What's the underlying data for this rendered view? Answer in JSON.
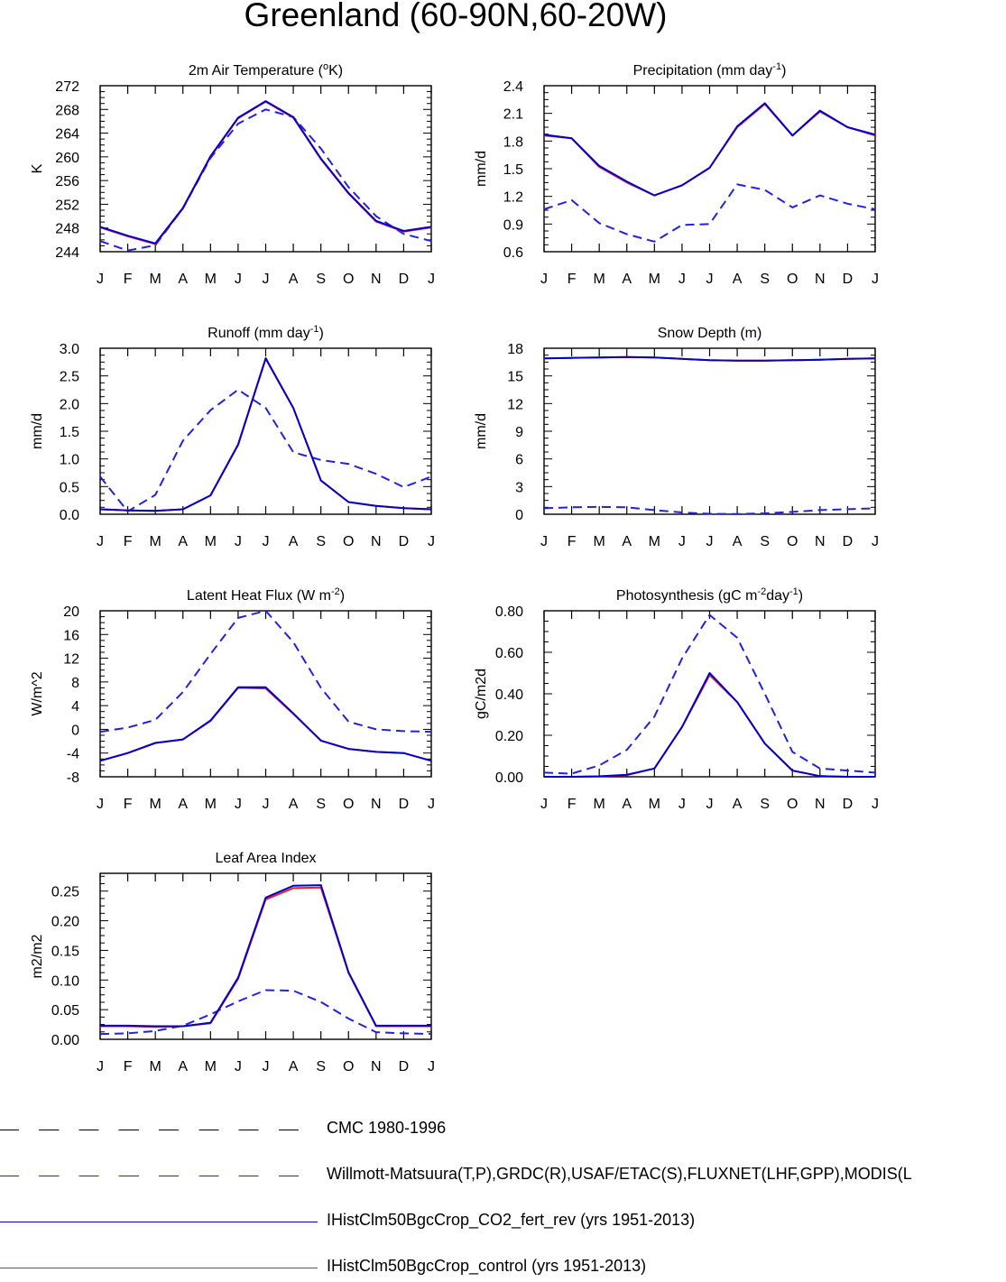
{
  "main_title": "Greenland (60-90N,60-20W)",
  "colors": {
    "observed_1": "#000000",
    "observed_2": "#2222dd",
    "model_1": "#0000cc",
    "model_2": "#ee2020"
  },
  "legend": [
    {
      "label": "CMC 1980-1996",
      "color": "#000000",
      "style": "dashed"
    },
    {
      "label": "Willmott-Matsuura(T,P),GRDC(R),USAF/ETAC(S),FLUXNET(LHF,GPP),MODIS(L",
      "color": "#2222dd",
      "style": "dashed"
    },
    {
      "label": "IHistClm50BgcCrop_CO2_fert_rev (yrs 1951-2013)",
      "color": "#0000cc",
      "style": "solid"
    },
    {
      "label": "IHistClm50BgcCrop_control (yrs 1951-2013)",
      "color": "#ee2020",
      "style": "solid"
    }
  ],
  "chart_data": [
    {
      "type": "line",
      "title": "2m Air Temperature (°K)",
      "ylabel": "K",
      "categories": [
        "J",
        "F",
        "M",
        "A",
        "M",
        "J",
        "J",
        "A",
        "S",
        "O",
        "N",
        "D",
        "J"
      ],
      "ylim": [
        244,
        272
      ],
      "yticks": [
        "244",
        "248",
        "252",
        "256",
        "260",
        "264",
        "268",
        "272"
      ],
      "series": [
        {
          "style": "dashed",
          "color": "#2222dd",
          "values": [
            245.8,
            244.2,
            245.1,
            251.3,
            259.8,
            265.6,
            268.0,
            266.7,
            261.4,
            254.9,
            250.0,
            247.0,
            245.8
          ]
        },
        {
          "style": "solid",
          "color": "#ee2020",
          "values": [
            248.1,
            246.6,
            245.3,
            251.3,
            260.0,
            266.5,
            269.3,
            266.6,
            259.6,
            253.8,
            249.1,
            247.4,
            248.1
          ]
        },
        {
          "style": "solid",
          "color": "#0000cc",
          "values": [
            248.2,
            246.7,
            245.4,
            251.4,
            260.1,
            266.6,
            269.4,
            266.7,
            259.7,
            253.9,
            249.2,
            247.5,
            248.2
          ]
        }
      ]
    },
    {
      "type": "line",
      "title": "Precipitation (mm day⁻¹)",
      "ylabel": "mm/d",
      "categories": [
        "J",
        "F",
        "M",
        "A",
        "M",
        "J",
        "J",
        "A",
        "S",
        "O",
        "N",
        "D",
        "J"
      ],
      "ylim": [
        0.6,
        2.4
      ],
      "yticks": [
        "0.6",
        "0.9",
        "1.2",
        "1.5",
        "1.8",
        "2.1",
        "2.4"
      ],
      "series": [
        {
          "style": "dashed",
          "color": "#2222dd",
          "values": [
            1.06,
            1.16,
            0.91,
            0.79,
            0.71,
            0.89,
            0.9,
            1.33,
            1.27,
            1.08,
            1.21,
            1.12,
            1.06
          ]
        },
        {
          "style": "solid",
          "color": "#ee2020",
          "values": [
            1.86,
            1.83,
            1.52,
            1.35,
            1.21,
            1.32,
            1.51,
            1.95,
            2.2,
            1.86,
            2.12,
            1.95,
            1.86
          ]
        },
        {
          "style": "solid",
          "color": "#0000cc",
          "values": [
            1.87,
            1.83,
            1.53,
            1.36,
            1.21,
            1.32,
            1.51,
            1.96,
            2.21,
            1.86,
            2.13,
            1.95,
            1.87
          ]
        }
      ]
    },
    {
      "type": "line",
      "title": "Runoff (mm day⁻¹)",
      "ylabel": "mm/d",
      "categories": [
        "J",
        "F",
        "M",
        "A",
        "M",
        "J",
        "J",
        "A",
        "S",
        "O",
        "N",
        "D",
        "J"
      ],
      "ylim": [
        0,
        3.0
      ],
      "yticks": [
        "0.0",
        "0.5",
        "1.0",
        "1.5",
        "2.0",
        "2.5",
        "3.0"
      ],
      "series": [
        {
          "style": "dashed",
          "color": "#2222dd",
          "values": [
            0.68,
            0.05,
            0.35,
            1.33,
            1.88,
            2.25,
            1.92,
            1.12,
            0.98,
            0.91,
            0.73,
            0.49,
            0.68
          ]
        },
        {
          "style": "solid",
          "color": "#ee2020",
          "values": [
            0.09,
            0.07,
            0.06,
            0.09,
            0.34,
            1.25,
            2.81,
            1.92,
            0.61,
            0.22,
            0.15,
            0.11,
            0.09
          ]
        },
        {
          "style": "solid",
          "color": "#0000cc",
          "values": [
            0.09,
            0.07,
            0.06,
            0.09,
            0.34,
            1.26,
            2.82,
            1.92,
            0.61,
            0.22,
            0.15,
            0.11,
            0.09
          ]
        }
      ]
    },
    {
      "type": "line",
      "title": "Snow Depth (m)",
      "ylabel": "mm/d",
      "categories": [
        "J",
        "F",
        "M",
        "A",
        "M",
        "J",
        "J",
        "A",
        "S",
        "O",
        "N",
        "D",
        "J"
      ],
      "ylim": [
        0,
        18
      ],
      "yticks": [
        "0",
        "3",
        "6",
        "9",
        "12",
        "15",
        "18"
      ],
      "series": [
        {
          "style": "dashed",
          "color": "#2222dd",
          "values": [
            0.65,
            0.75,
            0.8,
            0.75,
            0.45,
            0.2,
            0.05,
            0.02,
            0.1,
            0.25,
            0.45,
            0.55,
            0.65
          ]
        },
        {
          "style": "solid",
          "color": "#ee2020",
          "values": [
            16.9,
            16.95,
            17.0,
            17.05,
            17.0,
            16.85,
            16.7,
            16.65,
            16.65,
            16.7,
            16.75,
            16.85,
            16.9
          ]
        },
        {
          "style": "solid",
          "color": "#0000cc",
          "values": [
            16.9,
            16.95,
            17.0,
            17.05,
            17.0,
            16.85,
            16.7,
            16.65,
            16.65,
            16.7,
            16.75,
            16.85,
            16.9
          ]
        }
      ]
    },
    {
      "type": "line",
      "title": "Latent Heat Flux (W m⁻²)",
      "ylabel": "W/m^2",
      "categories": [
        "J",
        "F",
        "M",
        "A",
        "M",
        "J",
        "J",
        "A",
        "S",
        "O",
        "N",
        "D",
        "J"
      ],
      "ylim": [
        -8,
        20
      ],
      "yticks": [
        "-8",
        "-4",
        "0",
        "4",
        "8",
        "12",
        "16",
        "20"
      ],
      "series": [
        {
          "style": "dashed",
          "color": "#2222dd",
          "values": [
            -0.4,
            0.3,
            1.6,
            6.3,
            12.7,
            18.8,
            20.0,
            14.7,
            7.0,
            1.3,
            0.0,
            -0.3,
            -0.4
          ]
        },
        {
          "style": "solid",
          "color": "#ee2020",
          "values": [
            -5.3,
            -4.0,
            -2.3,
            -1.7,
            1.4,
            7.0,
            6.9,
            2.6,
            -1.9,
            -3.3,
            -3.8,
            -4.0,
            -5.3
          ]
        },
        {
          "style": "solid",
          "color": "#0000cc",
          "values": [
            -5.3,
            -4.0,
            -2.3,
            -1.7,
            1.5,
            7.1,
            7.1,
            2.7,
            -1.9,
            -3.3,
            -3.8,
            -4.0,
            -5.3
          ]
        }
      ]
    },
    {
      "type": "line",
      "title": "Photosynthesis (gC m⁻²day⁻¹)",
      "ylabel": "gC/m2d",
      "categories": [
        "J",
        "F",
        "M",
        "A",
        "M",
        "J",
        "J",
        "A",
        "S",
        "O",
        "N",
        "D",
        "J"
      ],
      "ylim": [
        0,
        0.8
      ],
      "yticks": [
        "0.00",
        "0.20",
        "0.40",
        "0.60",
        "0.80"
      ],
      "series": [
        {
          "style": "dashed",
          "color": "#2222dd",
          "values": [
            0.02,
            0.015,
            0.055,
            0.13,
            0.29,
            0.57,
            0.78,
            0.67,
            0.4,
            0.12,
            0.04,
            0.03,
            0.02
          ]
        },
        {
          "style": "solid",
          "color": "#ee2020",
          "values": [
            0.0,
            0.0,
            0.002,
            0.008,
            0.04,
            0.24,
            0.49,
            0.36,
            0.16,
            0.03,
            0.003,
            0.0,
            0.0
          ]
        },
        {
          "style": "solid",
          "color": "#0000cc",
          "values": [
            0.0,
            0.0,
            0.002,
            0.01,
            0.04,
            0.24,
            0.5,
            0.36,
            0.16,
            0.03,
            0.003,
            0.0,
            0.0
          ]
        }
      ]
    },
    {
      "type": "line",
      "title": "Leaf Area Index",
      "ylabel": "m2/m2",
      "categories": [
        "J",
        "F",
        "M",
        "A",
        "M",
        "J",
        "J",
        "A",
        "S",
        "O",
        "N",
        "D",
        "J"
      ],
      "ylim": [
        0,
        0.28
      ],
      "yticks": [
        "0.00",
        "0.05",
        "0.10",
        "0.15",
        "0.20",
        "0.25"
      ],
      "series": [
        {
          "style": "dashed",
          "color": "#2222dd",
          "values": [
            0.009,
            0.01,
            0.014,
            0.023,
            0.042,
            0.064,
            0.083,
            0.082,
            0.063,
            0.035,
            0.012,
            0.01,
            0.009
          ]
        },
        {
          "style": "solid",
          "color": "#ee2020",
          "values": [
            0.022,
            0.022,
            0.021,
            0.022,
            0.027,
            0.102,
            0.236,
            0.255,
            0.256,
            0.112,
            0.022,
            0.022,
            0.022
          ]
        },
        {
          "style": "solid",
          "color": "#0000cc",
          "values": [
            0.023,
            0.023,
            0.022,
            0.022,
            0.028,
            0.104,
            0.239,
            0.259,
            0.26,
            0.113,
            0.023,
            0.023,
            0.023
          ]
        }
      ]
    }
  ]
}
